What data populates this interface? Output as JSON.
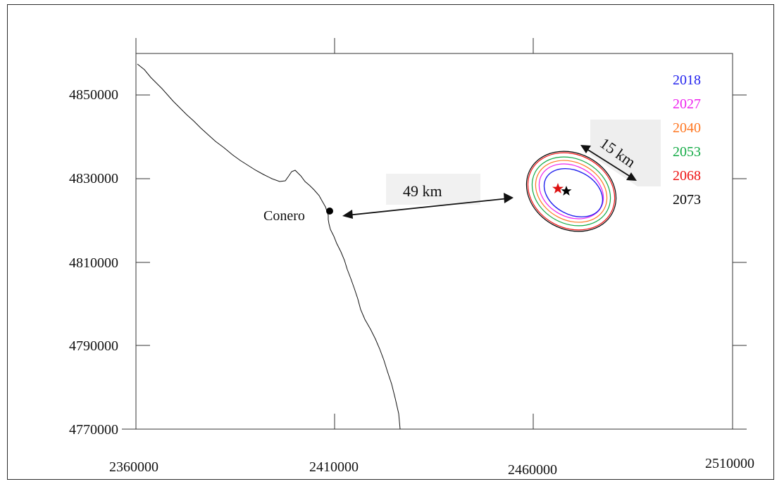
{
  "chart_data": {
    "type": "map",
    "x_ticks": [
      "2360000",
      "2410000",
      "2460000",
      "2510000"
    ],
    "y_ticks": [
      "4850000",
      "4830000",
      "4810000",
      "4790000",
      "4770000"
    ],
    "place": {
      "name": "Conero"
    },
    "distance_labels": {
      "to_site": "49 km",
      "ellipse_width": "15 km"
    },
    "legend": [
      {
        "label": "2018",
        "color": "#2222ee"
      },
      {
        "label": "2027",
        "color": "#ee22ee"
      },
      {
        "label": "2040",
        "color": "#ff7722"
      },
      {
        "label": "2053",
        "color": "#11aa44"
      },
      {
        "label": "2068",
        "color": "#ee1111"
      },
      {
        "label": "2073",
        "color": "#000000"
      }
    ],
    "markers": [
      {
        "name": "red-star",
        "color": "#dd1111"
      },
      {
        "name": "black-star",
        "color": "#000000"
      }
    ]
  }
}
